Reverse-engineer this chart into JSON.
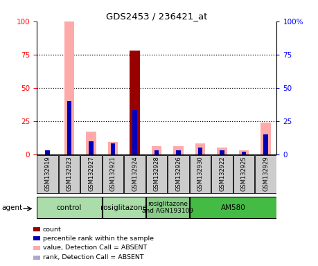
{
  "title": "GDS2453 / 236421_at",
  "samples": [
    "GSM132919",
    "GSM132923",
    "GSM132927",
    "GSM132921",
    "GSM132924",
    "GSM132928",
    "GSM132926",
    "GSM132930",
    "GSM132922",
    "GSM132925",
    "GSM132929"
  ],
  "count_values": [
    0,
    0,
    0,
    0,
    78,
    0,
    0,
    0,
    0,
    0,
    0
  ],
  "percentile_rank": [
    3,
    40,
    10,
    8,
    33,
    3,
    3,
    5,
    3,
    2,
    15
  ],
  "absent_value": [
    0,
    100,
    17,
    9,
    0,
    6,
    6,
    8,
    5,
    3,
    24
  ],
  "absent_rank": [
    3,
    0,
    10,
    8,
    0,
    3,
    3,
    5,
    3,
    2,
    15
  ],
  "agent_groups": [
    {
      "label": "control",
      "start": 0,
      "end": 3,
      "color": "#aaddaa"
    },
    {
      "label": "rosiglitazone",
      "start": 3,
      "end": 5,
      "color": "#aaddaa"
    },
    {
      "label": "rosiglitazone\nand AGN193109",
      "start": 5,
      "end": 7,
      "color": "#88cc88"
    },
    {
      "label": "AM580",
      "start": 7,
      "end": 11,
      "color": "#44bb44"
    }
  ],
  "ylim": [
    0,
    100
  ],
  "color_count": "#990000",
  "color_rank": "#0000bb",
  "color_absent_value": "#ffaaaa",
  "color_absent_rank": "#aaaacc",
  "background_color": "#ffffff"
}
